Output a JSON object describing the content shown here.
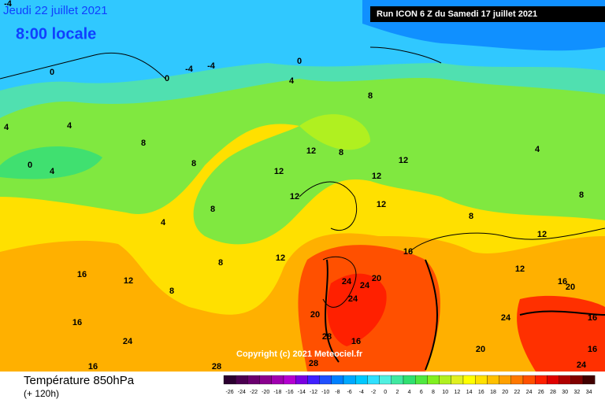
{
  "header": {
    "date": "Jeudi 22 juillet 2021",
    "time": "8:00 locale",
    "run": "Run ICON 6 Z du Samedi 17 juillet 2021"
  },
  "copyright": "Copyright (c) 2021 Meteociel.fr",
  "footer": {
    "title": "Température 850hPa",
    "lead": "(+ 120h)"
  },
  "contour_labels": [
    -4,
    0,
    0,
    -4,
    -4,
    0,
    4,
    8,
    4,
    4,
    8,
    0,
    4,
    8,
    12,
    12,
    8,
    12,
    12,
    4,
    8,
    4,
    8,
    12,
    12,
    8,
    8,
    12,
    16,
    16,
    12,
    8,
    24,
    24,
    20,
    24,
    20,
    12,
    12,
    16,
    24,
    20,
    16,
    16,
    24,
    28,
    16,
    20,
    24,
    16,
    16,
    28,
    28
  ],
  "colorbar": {
    "values": [
      -26,
      -24,
      -22,
      -20,
      -18,
      -16,
      -14,
      -12,
      -10,
      -8,
      -6,
      -4,
      -2,
      0,
      2,
      4,
      6,
      8,
      10,
      12,
      14,
      16,
      18,
      20,
      22,
      24,
      26,
      28,
      30,
      32,
      34
    ],
    "colors": [
      "#2b0030",
      "#4b0050",
      "#6a006e",
      "#8a008e",
      "#a000b0",
      "#b400d0",
      "#7a00e0",
      "#4020ff",
      "#2050ff",
      "#0080ff",
      "#00a8ff",
      "#00c8ff",
      "#30e0ff",
      "#50f0e0",
      "#40e8a0",
      "#30e070",
      "#50e840",
      "#80f020",
      "#b0f020",
      "#e0f020",
      "#ffff00",
      "#ffe000",
      "#ffc000",
      "#ffa000",
      "#ff7800",
      "#ff5000",
      "#ff2000",
      "#e00000",
      "#b00000",
      "#800000",
      "#400000"
    ]
  }
}
